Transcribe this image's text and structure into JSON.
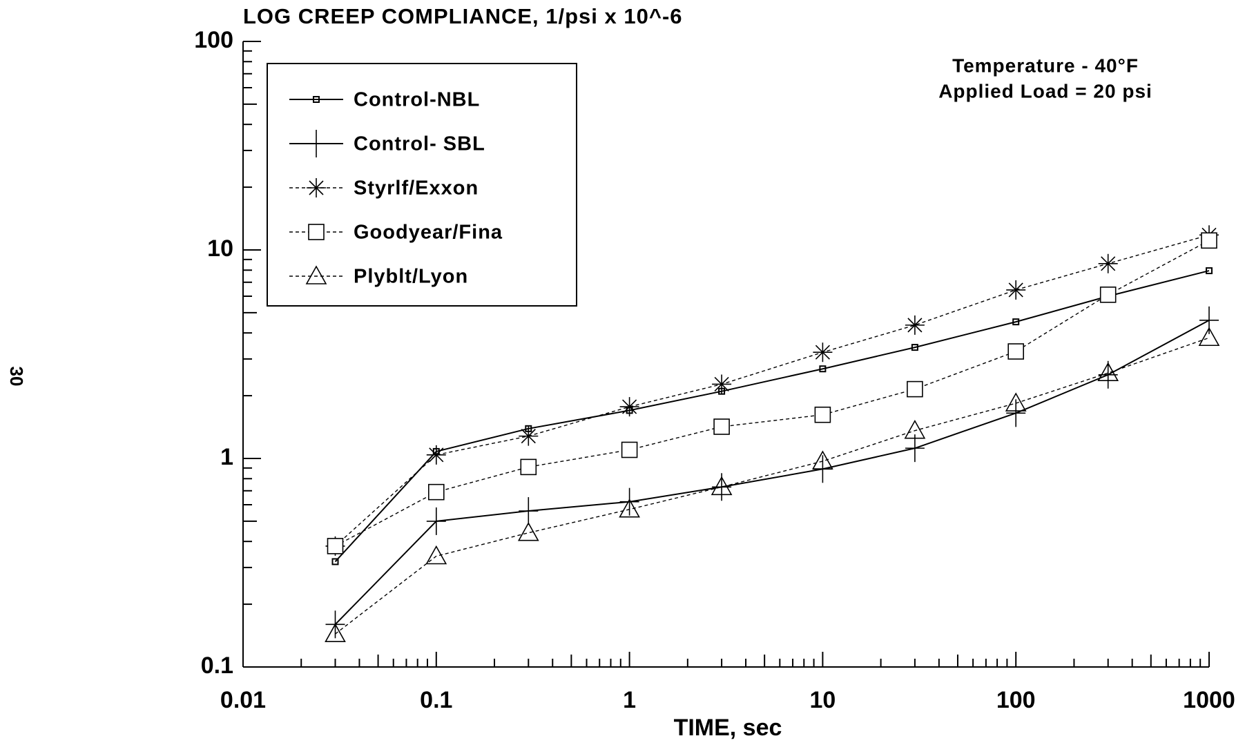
{
  "chart_data": {
    "type": "line",
    "title": "LOG CREEP COMPLIANCE, 1/psi x 10^-6",
    "x_label": "TIME, sec",
    "annotations": [
      "Temperature - 40°F",
      "Applied Load = 20 psi"
    ],
    "page_number": "30",
    "x": [
      0.03,
      0.1,
      0.3,
      1,
      3,
      10,
      30,
      100,
      300,
      1000
    ],
    "series": [
      {
        "name": "Control-NBL",
        "color": "#000000",
        "marker": "small-square",
        "dashed": false,
        "values": [
          0.32,
          1.08,
          1.39,
          1.7,
          2.1,
          2.69,
          3.41,
          4.52,
          6.0,
          7.95
        ]
      },
      {
        "name": "Control- SBL",
        "color": "#000000",
        "marker": "plus",
        "dashed": false,
        "values": [
          0.16,
          0.5,
          0.56,
          0.62,
          0.73,
          0.89,
          1.12,
          1.65,
          2.52,
          4.6
        ]
      },
      {
        "name": "Styrlf/Exxon",
        "color": "#000000",
        "marker": "asterisk",
        "dashed": true,
        "values": [
          0.38,
          1.04,
          1.28,
          1.77,
          2.27,
          3.23,
          4.36,
          6.43,
          8.6,
          11.8
        ]
      },
      {
        "name": "Goodyear/Fina",
        "color": "#000000",
        "marker": "square",
        "dashed": true,
        "values": [
          0.38,
          0.69,
          0.91,
          1.1,
          1.42,
          1.62,
          2.15,
          3.26,
          6.1,
          11.1
        ]
      },
      {
        "name": "Plyblt/Lyon",
        "color": "#000000",
        "marker": "triangle",
        "dashed": true,
        "values": [
          0.144,
          0.34,
          0.44,
          0.57,
          0.73,
          0.97,
          1.36,
          1.84,
          2.57,
          3.79
        ]
      }
    ],
    "x_scale": "log",
    "y_scale": "log",
    "xlim": [
      0.01,
      1000
    ],
    "xticks": [
      0.01,
      0.1,
      1,
      10,
      100,
      1000
    ],
    "ylim": [
      0.1,
      100
    ],
    "yticks": [
      0.1,
      1,
      10,
      100
    ],
    "legend": "upper left",
    "grid": false
  }
}
